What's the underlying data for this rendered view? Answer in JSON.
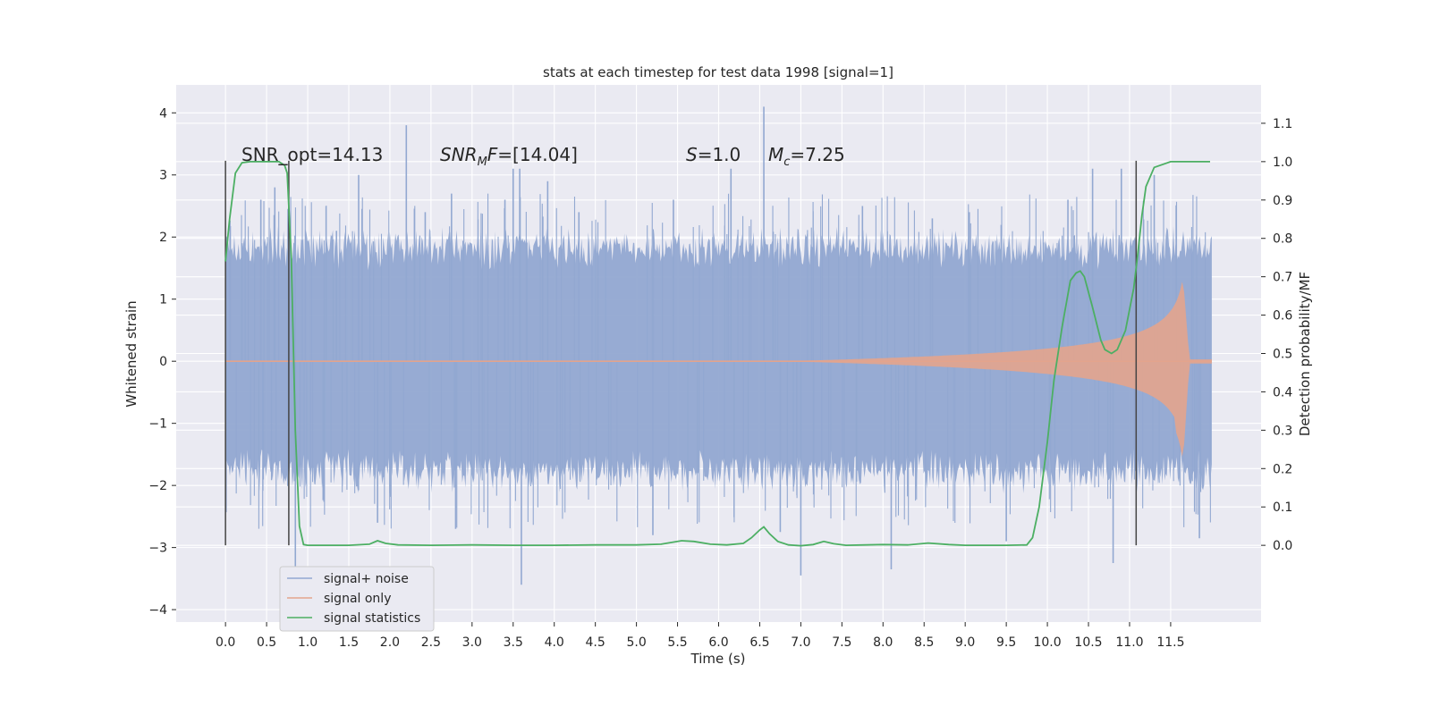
{
  "chart_data": {
    "type": "line",
    "title": "stats at each timestep for test data 1998 [signal=1]",
    "xlabel": "Time (s)",
    "ylabel": "Whitened strain",
    "ylabel_right": "Detection probability/MF",
    "xlim": [
      -0.6,
      12.6
    ],
    "ylim": [
      -4.2,
      4.45
    ],
    "ylim_right": [
      -0.2,
      1.2
    ],
    "x_ticks": [
      "0.0",
      "0.5",
      "1.0",
      "1.5",
      "2.0",
      "2.5",
      "3.0",
      "3.5",
      "4.0",
      "4.5",
      "5.0",
      "5.5",
      "6.0",
      "6.5",
      "7.0",
      "7.5",
      "8.0",
      "8.5",
      "9.0",
      "9.5",
      "10.0",
      "10.5",
      "11.0",
      "11.5"
    ],
    "y_ticks_left": [
      "4",
      "3",
      "2",
      "1",
      "0",
      "−1",
      "−2",
      "−3",
      "−4"
    ],
    "y_ticks_right": [
      "1.1",
      "1.0",
      "0.9",
      "0.8",
      "0.7",
      "0.6",
      "0.5",
      "0.4",
      "0.3",
      "0.2",
      "0.1",
      "0.0"
    ],
    "grid": true,
    "legend_position": "lower-left",
    "annotations": [
      {
        "text": "SNR_opt=14.13",
        "x": 0.2,
        "y": 3.35
      },
      {
        "text_main": "SNR",
        "text_sub": "M",
        "text_rest": "F=[14.04]",
        "x": 2.6,
        "y": 3.35
      },
      {
        "text_main": "S",
        "text_rest": "=1.0",
        "x": 5.6,
        "y": 3.35
      },
      {
        "text_main": "M",
        "text_sub": "c",
        "text_rest": "=7.25",
        "x": 6.6,
        "y": 3.35
      }
    ],
    "vlines": [
      0.0,
      0.77,
      11.08
    ],
    "series": [
      {
        "name": "signal+ noise",
        "color": "#92a8d1",
        "t_range": [
          0.0,
          12.0
        ],
        "envelope": {
          "low": -1.8,
          "high": 1.85
        },
        "spikes": [
          [
            0.2,
            1.9
          ],
          [
            0.43,
            2.6
          ],
          [
            0.6,
            2.8
          ],
          [
            1.35,
            2.1
          ],
          [
            1.62,
            3.0
          ],
          [
            2.2,
            3.8
          ],
          [
            2.43,
            2.4
          ],
          [
            2.75,
            2.7
          ],
          [
            3.4,
            2.6
          ],
          [
            3.5,
            3.1
          ],
          [
            3.58,
            3.1
          ],
          [
            3.92,
            2.9
          ],
          [
            4.3,
            2.4
          ],
          [
            5.45,
            2.6
          ],
          [
            6.15,
            3.1
          ],
          [
            6.55,
            4.1
          ],
          [
            7.75,
            2.5
          ],
          [
            8.6,
            2.3
          ],
          [
            9.05,
            2.4
          ],
          [
            10.25,
            2.6
          ],
          [
            10.55,
            3.1
          ],
          [
            10.9,
            3.1
          ],
          [
            11.3,
            3.0
          ],
          [
            0.85,
            -3.4
          ],
          [
            1.85,
            -2.6
          ],
          [
            3.6,
            -3.6
          ],
          [
            7.0,
            -3.45
          ],
          [
            8.1,
            -3.35
          ],
          [
            10.8,
            -3.25
          ],
          [
            11.85,
            -2.85
          ],
          [
            2.8,
            -2.7
          ],
          [
            5.2,
            -2.8
          ],
          [
            9.5,
            -2.9
          ],
          [
            6.75,
            -2.75
          ]
        ]
      },
      {
        "name": "signal only",
        "color": "#e3a48d",
        "chirp": {
          "t_start": 7.0,
          "t_merge": 11.65,
          "t_end": 12.0,
          "peak": 1.35
        }
      },
      {
        "name": "signal statistics",
        "color": "#4caf63",
        "axis": "right",
        "x": [
          0.0,
          0.05,
          0.12,
          0.2,
          0.3,
          0.5,
          0.65,
          0.72,
          0.75,
          0.8,
          0.85,
          0.9,
          0.95,
          1.0,
          1.2,
          1.5,
          1.75,
          1.85,
          1.95,
          2.1,
          2.5,
          3.0,
          3.5,
          4.0,
          4.5,
          5.0,
          5.3,
          5.55,
          5.7,
          5.9,
          6.1,
          6.3,
          6.4,
          6.5,
          6.55,
          6.62,
          6.72,
          6.85,
          7.0,
          7.15,
          7.28,
          7.4,
          7.55,
          7.8,
          8.0,
          8.3,
          8.55,
          8.8,
          9.0,
          9.5,
          9.75,
          9.82,
          9.9,
          10.0,
          10.08,
          10.18,
          10.28,
          10.35,
          10.4,
          10.45,
          10.55,
          10.65,
          10.7,
          10.78,
          10.85,
          10.95,
          11.05,
          11.1,
          11.15,
          11.2,
          11.3,
          11.5,
          11.8,
          11.98
        ],
        "y": [
          0.74,
          0.85,
          0.97,
          0.997,
          1.0,
          1.0,
          1.0,
          0.99,
          0.97,
          0.75,
          0.3,
          0.05,
          0.002,
          0.0,
          0.0,
          0.0,
          0.003,
          0.012,
          0.005,
          0.001,
          0.0,
          0.001,
          0.0,
          0.0,
          0.001,
          0.001,
          0.003,
          0.012,
          0.01,
          0.003,
          0.001,
          0.005,
          0.02,
          0.04,
          0.048,
          0.03,
          0.01,
          0.001,
          -0.001,
          0.002,
          0.01,
          0.004,
          0.0,
          0.001,
          0.002,
          0.001,
          0.006,
          0.002,
          0.0,
          0.0,
          0.001,
          0.02,
          0.1,
          0.27,
          0.43,
          0.57,
          0.69,
          0.71,
          0.715,
          0.7,
          0.62,
          0.535,
          0.51,
          0.5,
          0.51,
          0.56,
          0.67,
          0.76,
          0.86,
          0.935,
          0.985,
          1.0,
          1.0,
          1.0
        ]
      }
    ]
  }
}
